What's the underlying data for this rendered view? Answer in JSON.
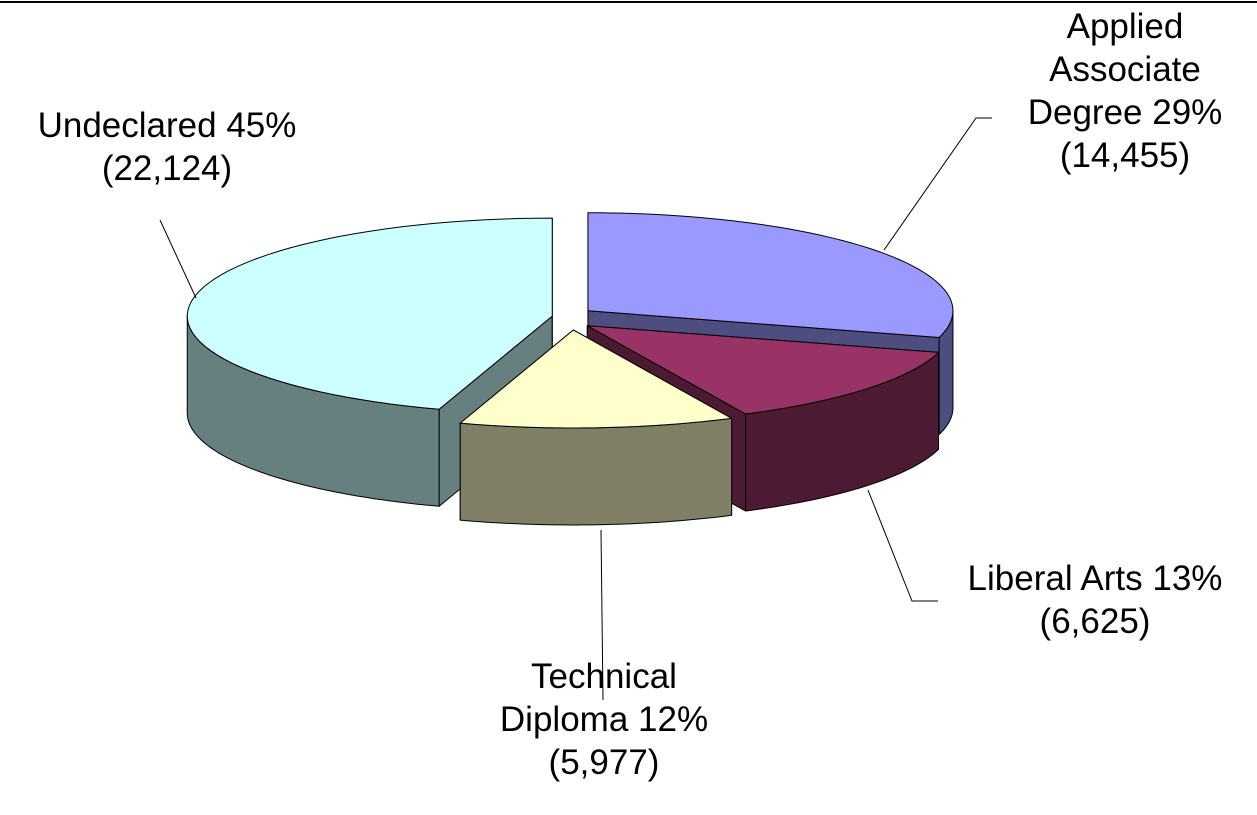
{
  "chart_data": {
    "type": "pie3d",
    "categories": [
      "Applied Associate Degree",
      "Liberal Arts",
      "Technical Diploma",
      "Undeclared"
    ],
    "values": [
      14455,
      6625,
      5977,
      22124
    ],
    "value_labels": [
      "(14,455)",
      "(6,625)",
      "(5,977)",
      "(22,124)"
    ],
    "percents": [
      29,
      13,
      12,
      45
    ],
    "percent_labels": [
      "29%",
      "13%",
      "12%",
      "45%"
    ],
    "colors": [
      "#9999ff",
      "#993366",
      "#ffffcc",
      "#ccffff"
    ]
  }
}
